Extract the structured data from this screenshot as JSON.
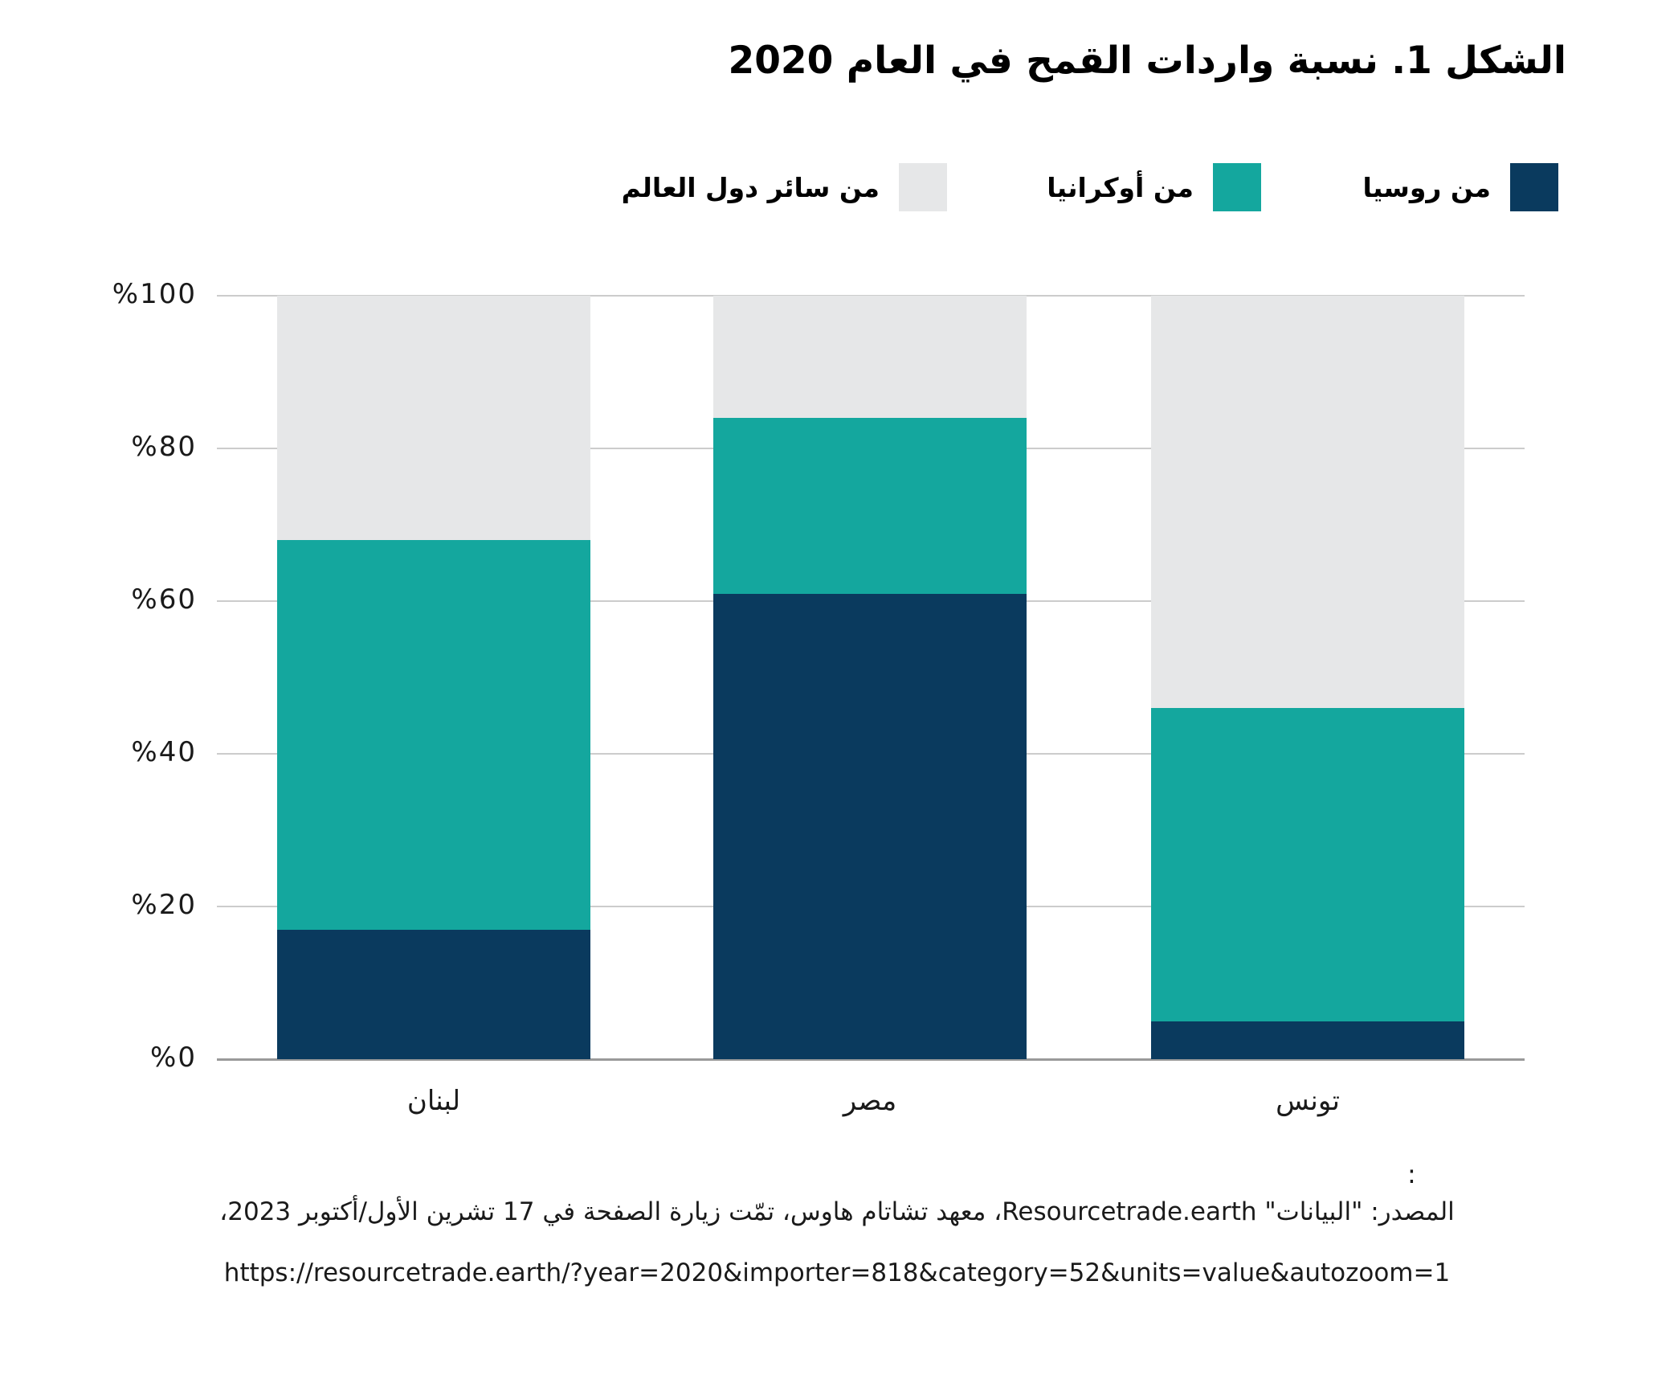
{
  "title": "الشكل 1. نسبة واردات القمح في العام 2020",
  "legend": [
    {
      "label": "من روسيا",
      "color": "#0a3a5e"
    },
    {
      "label": "من أوكرانيا",
      "color": "#14a79e"
    },
    {
      "label": "من سائر دول العالم",
      "color": "#e6e7e8"
    }
  ],
  "chart_data": {
    "type": "bar",
    "stacked": true,
    "title": "الشكل 1. نسبة واردات القمح في العام 2020",
    "categories": [
      "لبنان",
      "مصر",
      "تونس"
    ],
    "series": [
      {
        "name": "من روسيا",
        "color": "#0a3a5e",
        "values": [
          17,
          61,
          5
        ]
      },
      {
        "name": "من أوكرانيا",
        "color": "#14a79e",
        "values": [
          51,
          23,
          41
        ]
      },
      {
        "name": "من سائر دول العالم",
        "color": "#e6e7e8",
        "values": [
          32,
          16,
          54
        ]
      }
    ],
    "xlabel": "",
    "ylabel": "",
    "ylim": [
      0,
      100
    ],
    "y_ticks": [
      "%0",
      "%20",
      "%40",
      "%60",
      "%80",
      "%100"
    ],
    "grid": true,
    "legend_position": "top-right",
    "gridline_color": "#cccccc",
    "axis_line_color": "#9a9a9a"
  },
  "source": {
    "colon": ":",
    "line1": "المصدر: \"البيانات\" Resourcetrade.earth، معهد تشاتام هاوس، تمّت زيارة الصفحة في 17 تشرين الأول/أكتوبر 2023،",
    "url": "https://resourcetrade.earth/?year=2020&importer=818&category=52&units=value&autozoom=1"
  }
}
